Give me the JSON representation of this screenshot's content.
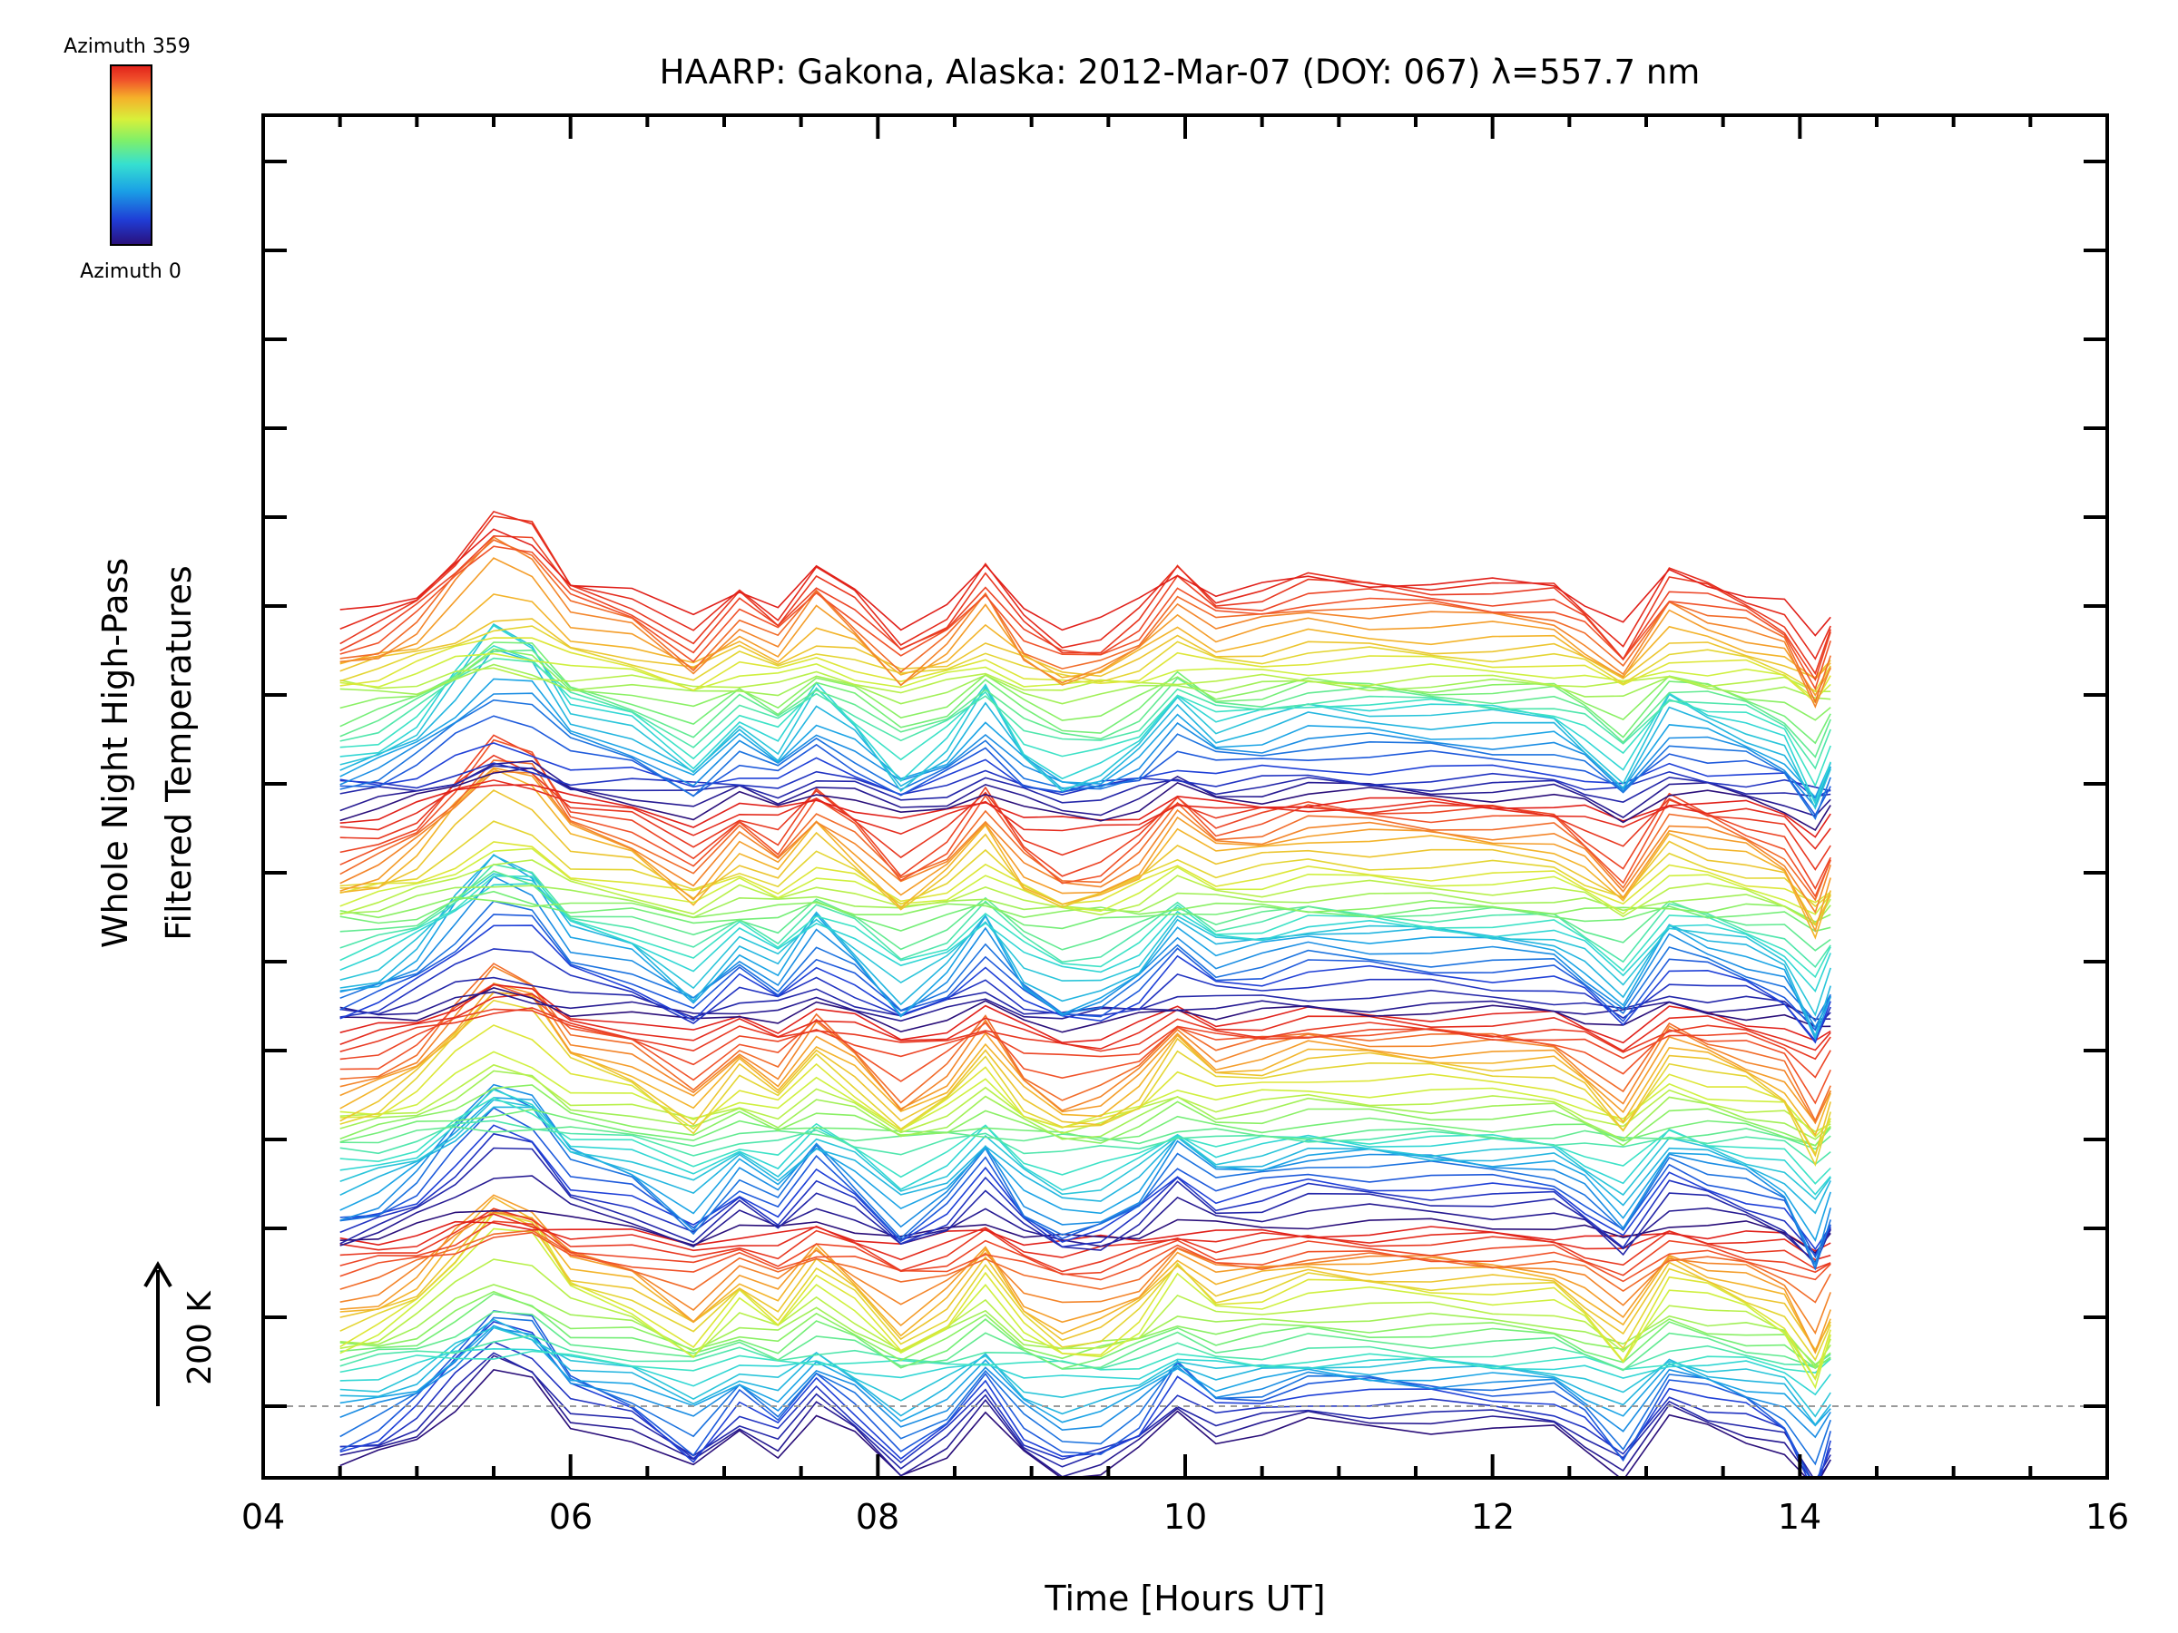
{
  "chart_data": {
    "type": "line",
    "title": "HAARP: Gakona,  Alaska: 2012-Mar-07 (DOY: 067) λ=557.7 nm",
    "xlabel": "Time [Hours UT]",
    "ylabel_line1": "Whole Night High-Pass",
    "ylabel_line2": "Filtered Temperatures",
    "xlim": [
      4,
      16
    ],
    "x_ticks": [
      "04",
      "06",
      "08",
      "10",
      "12",
      "14",
      "16"
    ],
    "scale_bar_label": "200 K",
    "colorbar": {
      "top_label": "Azimuth 359",
      "bottom_label": "Azimuth 0",
      "colormap": [
        "#2a0f7a",
        "#1f3dd6",
        "#1aa0e6",
        "#36e0d0",
        "#7ef06a",
        "#d8f03a",
        "#f5b02a",
        "#f0502a",
        "#e0201a"
      ]
    },
    "x": [
      4.5,
      4.75,
      5.0,
      5.25,
      5.5,
      5.75,
      6.0,
      6.4,
      6.8,
      7.1,
      7.35,
      7.6,
      7.85,
      8.15,
      8.45,
      8.7,
      8.95,
      9.2,
      9.45,
      9.7,
      9.95,
      10.2,
      10.5,
      10.8,
      11.2,
      11.6,
      12.0,
      12.4,
      12.6,
      12.85,
      13.15,
      13.4,
      13.65,
      13.9,
      14.1,
      14.2
    ],
    "profile": [
      -25,
      -15,
      5,
      40,
      75,
      65,
      20,
      5,
      -30,
      10,
      -10,
      30,
      5,
      -35,
      -10,
      30,
      -15,
      -35,
      -30,
      -10,
      30,
      5,
      10,
      20,
      18,
      16,
      14,
      12,
      -5,
      -35,
      25,
      15,
      5,
      -10,
      -55,
      -20
    ],
    "n_series": 128,
    "series_offset_kelvin": 28,
    "azimuth_range_deg": [
      0,
      359
    ]
  }
}
